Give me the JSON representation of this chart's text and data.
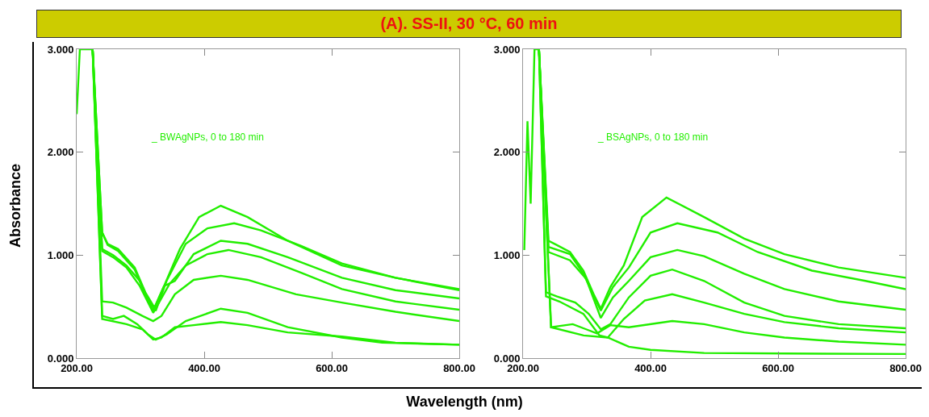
{
  "chart_data": [
    {
      "type": "line",
      "title": "(A). SS-II, 30 °C, 60 min",
      "xlabel": "Wavelength (nm)",
      "ylabel": "Absorbance",
      "annotations": [
        "_ BWAgNPs, 0 to 180 min"
      ],
      "xlim": [
        200,
        800
      ],
      "ylim": [
        0,
        3
      ],
      "xticks": [
        {
          "value": 200,
          "label": "200.00"
        },
        {
          "value": 400,
          "label": "400.00"
        },
        {
          "value": 600,
          "label": "600.00"
        },
        {
          "value": 800,
          "label": "800.00"
        }
      ],
      "yticks": [
        {
          "value": 0,
          "label": "0.000"
        },
        {
          "value": 1,
          "label": "1.000"
        },
        {
          "value": 2,
          "label": "2.000"
        },
        {
          "value": 3,
          "label": "3.000"
        }
      ],
      "grid": false,
      "marker": "none",
      "line_style": "solid",
      "series": [
        {
          "color": "#22ee00",
          "x": [
            200,
            205,
            225,
            240,
            248.5,
            265,
            291,
            307.6,
            322,
            337,
            362,
            392,
            426,
            468,
            531,
            616,
            700,
            800
          ],
          "values": [
            2.37,
            3.0,
            3.0,
            1.22,
            1.11,
            1.06,
            0.88,
            0.64,
            0.49,
            0.7,
            1.06,
            1.37,
            1.48,
            1.37,
            1.14,
            0.9,
            0.78,
            0.67
          ]
        },
        {
          "color": "#22ee00",
          "x": [
            225,
            240,
            248.5,
            265,
            291,
            307.6,
            324,
            341,
            371,
            405,
            447,
            489,
            552,
            616,
            700,
            800
          ],
          "values": [
            3.0,
            1.22,
            1.1,
            1.04,
            0.86,
            0.62,
            0.46,
            0.75,
            1.11,
            1.26,
            1.31,
            1.24,
            1.09,
            0.92,
            0.78,
            0.66
          ]
        },
        {
          "color": "#22ee00",
          "x": [
            225,
            240,
            257,
            278,
            299,
            320,
            337,
            354,
            383.5,
            426,
            468,
            531,
            616,
            700,
            800
          ],
          "values": [
            3.0,
            1.06,
            1.0,
            0.9,
            0.75,
            0.46,
            0.7,
            0.75,
            1.01,
            1.14,
            1.11,
            0.98,
            0.78,
            0.66,
            0.58
          ]
        },
        {
          "color": "#22ee00",
          "x": [
            225,
            240,
            257,
            278,
            299,
            320,
            345.5,
            371,
            405,
            438,
            489,
            552,
            616,
            700,
            800
          ],
          "values": [
            3.0,
            1.04,
            0.98,
            0.88,
            0.7,
            0.44,
            0.72,
            0.9,
            1.01,
            1.05,
            0.98,
            0.83,
            0.67,
            0.55,
            0.47
          ]
        },
        {
          "color": "#22ee00",
          "x": [
            225,
            240,
            257,
            278,
            303,
            320,
            333,
            354,
            383.5,
            426,
            468,
            544,
            616,
            700,
            800
          ],
          "values": [
            3.0,
            0.55,
            0.54,
            0.49,
            0.41,
            0.36,
            0.41,
            0.62,
            0.76,
            0.8,
            0.76,
            0.62,
            0.54,
            0.45,
            0.36
          ]
        },
        {
          "color": "#22ee00",
          "x": [
            225,
            240,
            257,
            274,
            295,
            312,
            324,
            341,
            371,
            426,
            468,
            531,
            616,
            679,
            800
          ],
          "values": [
            3.0,
            0.41,
            0.38,
            0.41,
            0.33,
            0.23,
            0.18,
            0.23,
            0.36,
            0.48,
            0.44,
            0.3,
            0.2,
            0.15,
            0.13
          ]
        },
        {
          "color": "#22ee00",
          "x": [
            225,
            240,
            278,
            303,
            320,
            333,
            354,
            383.5,
            426,
            468,
            531,
            616,
            700,
            800
          ],
          "values": [
            3.0,
            0.38,
            0.33,
            0.28,
            0.18,
            0.2,
            0.3,
            0.32,
            0.35,
            0.32,
            0.25,
            0.21,
            0.15,
            0.13
          ]
        }
      ]
    },
    {
      "type": "line",
      "annotations": [
        "_ BSAgNPs, 0 to 180 min"
      ],
      "xlim": [
        200,
        800
      ],
      "ylim": [
        0,
        3
      ],
      "xticks": [
        {
          "value": 200,
          "label": "200.00"
        },
        {
          "value": 400,
          "label": "400.00"
        },
        {
          "value": 600,
          "label": "600.00"
        },
        {
          "value": 800,
          "label": "800.00"
        }
      ],
      "yticks": [
        {
          "value": 0,
          "label": "0.000"
        },
        {
          "value": 1,
          "label": "1.000"
        },
        {
          "value": 2,
          "label": "2.000"
        },
        {
          "value": 3,
          "label": "3.000"
        }
      ],
      "grid": false,
      "marker": "none",
      "line_style": "solid",
      "series": [
        {
          "color": "#22ee00",
          "x": [
            202,
            207,
            212,
            218,
            225,
            240,
            252.6,
            273.7,
            294.7,
            311.6,
            322,
            337,
            358,
            387,
            425,
            484,
            547,
            610,
            695,
            800
          ],
          "values": [
            1.05,
            2.3,
            1.5,
            3.0,
            3.0,
            1.14,
            1.1,
            1.03,
            0.85,
            0.61,
            0.48,
            0.69,
            0.9,
            1.37,
            1.56,
            1.37,
            1.16,
            1.01,
            0.88,
            0.78
          ]
        },
        {
          "color": "#22ee00",
          "x": [
            225,
            240,
            273.7,
            294.7,
            322,
            341,
            366,
            400,
            442,
            505,
            568,
            653,
            737,
            800
          ],
          "values": [
            3.0,
            1.08,
            1.01,
            0.82,
            0.46,
            0.69,
            0.88,
            1.22,
            1.31,
            1.22,
            1.03,
            0.85,
            0.75,
            0.67
          ]
        },
        {
          "color": "#22ee00",
          "x": [
            225,
            240,
            273.7,
            299,
            322,
            341,
            366,
            400,
            442,
            484,
            547,
            610,
            695,
            800
          ],
          "values": [
            3.0,
            1.03,
            0.95,
            0.77,
            0.39,
            0.59,
            0.75,
            0.98,
            1.05,
            0.99,
            0.82,
            0.67,
            0.55,
            0.47
          ]
        },
        {
          "color": "#22ee00",
          "x": [
            225,
            236,
            252.6,
            282,
            303,
            322,
            337,
            366,
            400,
            434,
            484,
            547,
            610,
            695,
            800
          ],
          "values": [
            3.0,
            0.64,
            0.6,
            0.54,
            0.43,
            0.28,
            0.33,
            0.59,
            0.8,
            0.86,
            0.75,
            0.54,
            0.41,
            0.33,
            0.29
          ]
        },
        {
          "color": "#22ee00",
          "x": [
            225,
            236,
            257,
            294.7,
            320,
            333,
            358,
            391,
            434,
            484,
            547,
            610,
            695,
            800
          ],
          "values": [
            3.0,
            0.6,
            0.55,
            0.43,
            0.22,
            0.2,
            0.38,
            0.56,
            0.62,
            0.54,
            0.43,
            0.35,
            0.29,
            0.25
          ]
        },
        {
          "color": "#22ee00",
          "x": [
            225,
            244,
            278,
            299,
            316,
            337,
            366,
            434,
            484,
            547,
            610,
            695,
            800
          ],
          "values": [
            3.0,
            0.3,
            0.33,
            0.28,
            0.24,
            0.32,
            0.3,
            0.36,
            0.33,
            0.25,
            0.2,
            0.16,
            0.13
          ]
        },
        {
          "color": "#22ee00",
          "x": [
            225,
            244,
            295,
            333,
            366,
            400,
            484,
            610,
            800
          ],
          "values": [
            3.0,
            0.3,
            0.22,
            0.2,
            0.11,
            0.08,
            0.05,
            0.045,
            0.04
          ]
        }
      ]
    }
  ]
}
